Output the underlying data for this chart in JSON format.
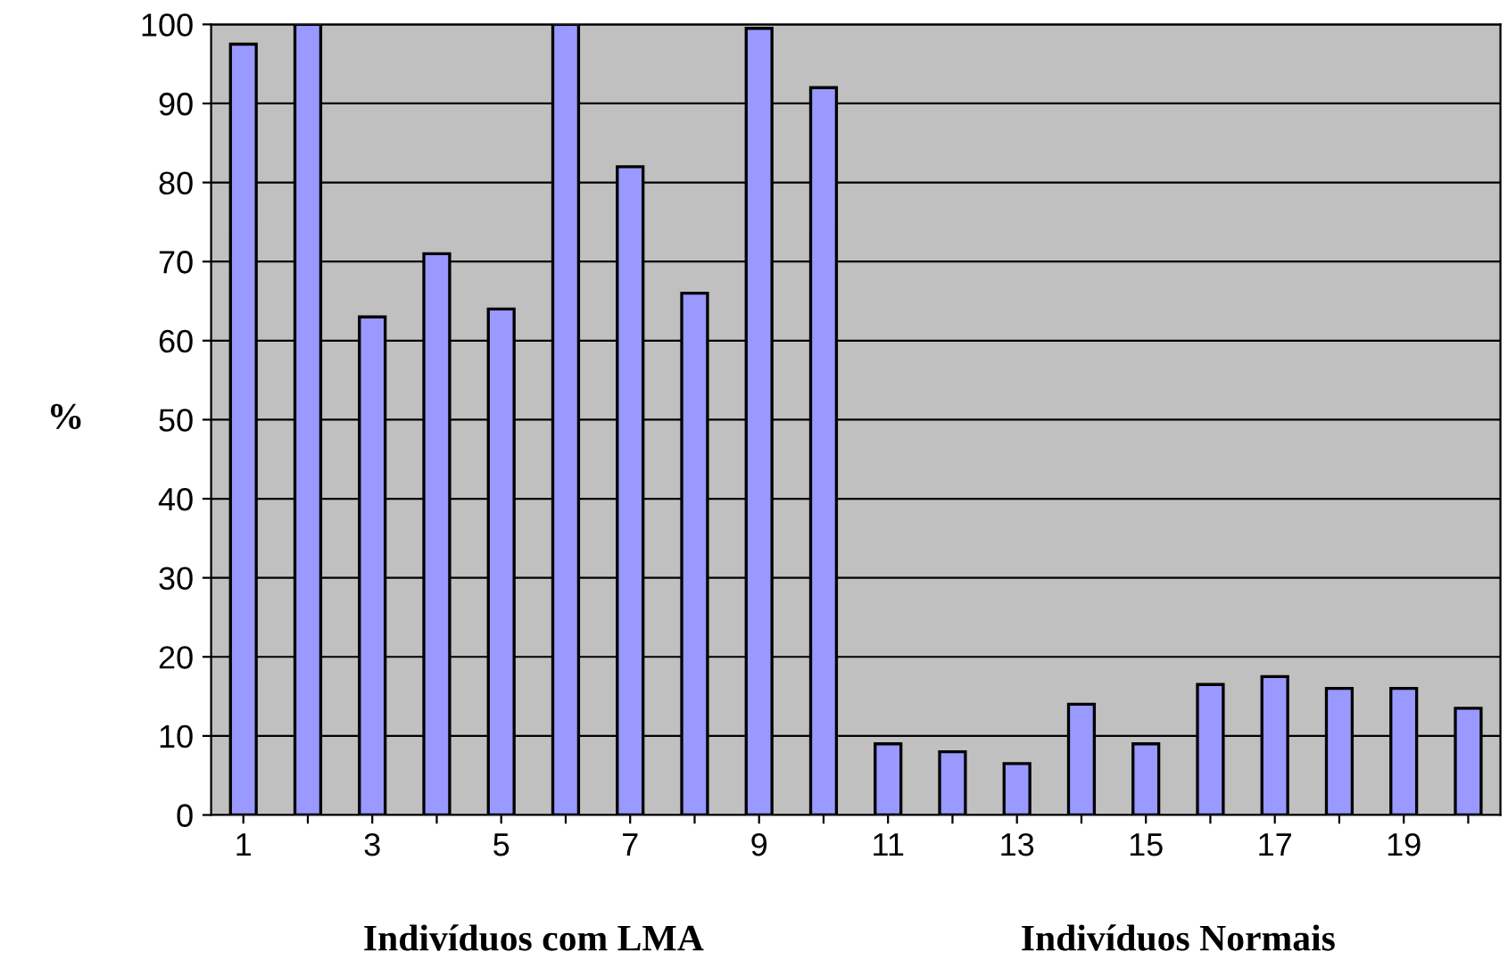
{
  "chart_data": {
    "type": "bar",
    "ylabel": "%",
    "categories": [
      "1",
      null,
      "3",
      null,
      "5",
      null,
      "7",
      null,
      "9",
      null,
      "11",
      null,
      "13",
      null,
      "15",
      null,
      "17",
      null,
      "19",
      null
    ],
    "values": [
      97.5,
      100,
      63,
      71,
      64,
      100,
      82,
      66,
      99.5,
      92,
      9,
      8,
      6.5,
      14,
      9,
      16.5,
      17.5,
      16,
      16,
      13.5
    ],
    "color": "#9999ff",
    "ylim": [
      0,
      100
    ],
    "yticks": [
      0,
      10,
      20,
      30,
      40,
      50,
      60,
      70,
      80,
      90,
      100
    ],
    "grid": "y",
    "annotations": [
      "Indivíduos com LMA",
      "Indivíduos Normais"
    ]
  }
}
